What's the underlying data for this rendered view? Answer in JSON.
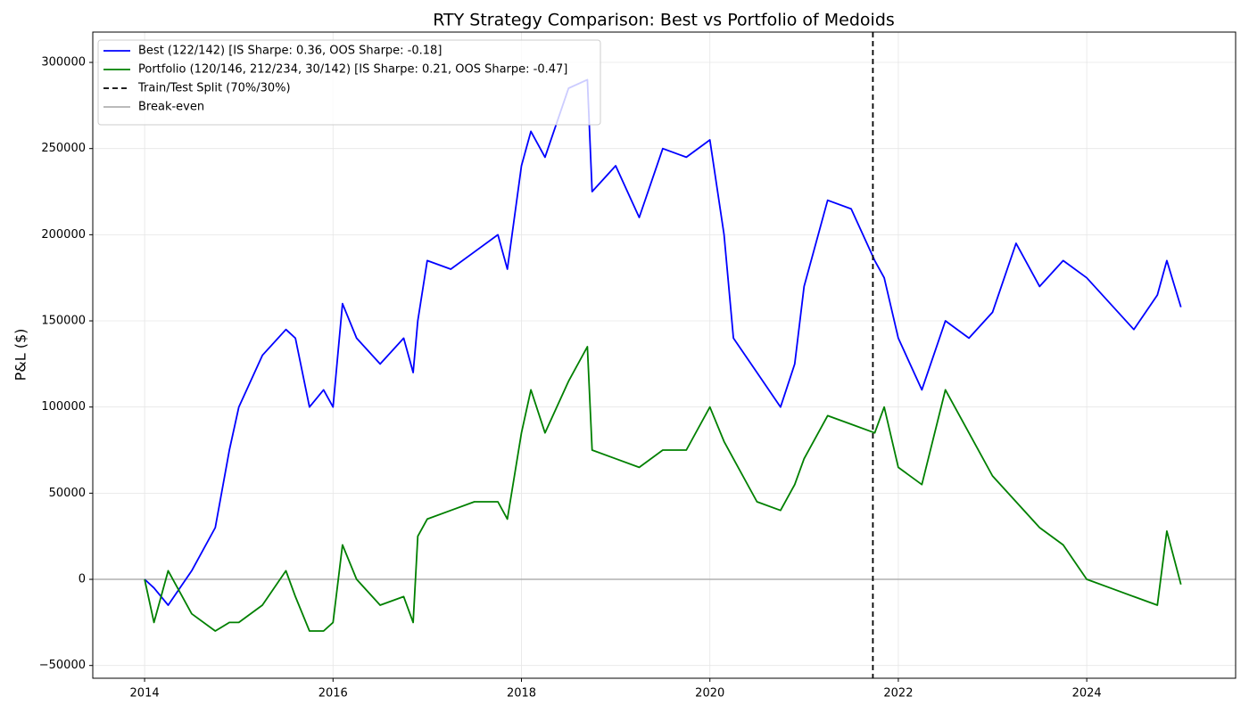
{
  "chart_data": {
    "type": "line",
    "title": "RTY Strategy Comparison: Best vs Portfolio of Medoids",
    "y_label": "P&L ($)",
    "x": [
      2014.0,
      2014.1,
      2014.25,
      2014.5,
      2014.75,
      2014.9,
      2015.0,
      2015.25,
      2015.5,
      2015.6,
      2015.75,
      2015.9,
      2016.0,
      2016.1,
      2016.25,
      2016.5,
      2016.75,
      2016.85,
      2016.9,
      2017.0,
      2017.25,
      2017.5,
      2017.75,
      2017.85,
      2018.0,
      2018.1,
      2018.25,
      2018.5,
      2018.7,
      2018.75,
      2019.0,
      2019.25,
      2019.5,
      2019.75,
      2020.0,
      2020.15,
      2020.25,
      2020.5,
      2020.75,
      2020.9,
      2021.0,
      2021.25,
      2021.5,
      2021.75,
      2021.85,
      2022.0,
      2022.25,
      2022.5,
      2022.75,
      2023.0,
      2023.25,
      2023.5,
      2023.75,
      2024.0,
      2024.25,
      2024.5,
      2024.75,
      2024.85,
      2025.0
    ],
    "series": [
      {
        "name": "Best (122/142) [IS Sharpe: 0.36, OOS Sharpe: -0.18]",
        "color": "#0000ff",
        "values": [
          0,
          -5000,
          -15000,
          5000,
          30000,
          75000,
          100000,
          130000,
          145000,
          140000,
          100000,
          110000,
          100000,
          160000,
          140000,
          125000,
          140000,
          120000,
          150000,
          185000,
          180000,
          190000,
          200000,
          180000,
          240000,
          260000,
          245000,
          285000,
          290000,
          225000,
          240000,
          210000,
          250000,
          245000,
          255000,
          200000,
          140000,
          120000,
          100000,
          125000,
          170000,
          220000,
          215000,
          185000,
          175000,
          140000,
          110000,
          150000,
          140000,
          155000,
          195000,
          170000,
          185000,
          175000,
          160000,
          145000,
          165000,
          185000,
          158000
        ]
      },
      {
        "name": "Portfolio (120/146, 212/234, 30/142) [IS Sharpe: 0.21, OOS Sharpe: -0.47]",
        "color": "#008000",
        "values": [
          0,
          -25000,
          5000,
          -20000,
          -30000,
          -25000,
          -25000,
          -15000,
          5000,
          -10000,
          -30000,
          -30000,
          -25000,
          20000,
          0,
          -15000,
          -10000,
          -25000,
          25000,
          35000,
          40000,
          45000,
          45000,
          35000,
          85000,
          110000,
          85000,
          115000,
          135000,
          75000,
          70000,
          65000,
          75000,
          75000,
          100000,
          80000,
          70000,
          45000,
          40000,
          55000,
          70000,
          95000,
          90000,
          85000,
          100000,
          65000,
          55000,
          110000,
          85000,
          60000,
          45000,
          30000,
          20000,
          0,
          -5000,
          -10000,
          -15000,
          28000,
          -3000
        ]
      }
    ],
    "vlines": [
      {
        "name": "Train/Test Split (70%/30%)",
        "x": 2021.73,
        "color": "#000000",
        "style": "dashed"
      }
    ],
    "hlines": [
      {
        "name": "Break-even",
        "y": 0,
        "color": "#b0b0b0",
        "style": "solid"
      }
    ],
    "xlim": [
      2013.45,
      2025.58
    ],
    "ylim": [
      -57400,
      317600
    ],
    "xticks": [
      2014,
      2016,
      2018,
      2020,
      2022,
      2024
    ],
    "yticks": [
      {
        "value": -50000,
        "label": "−50000"
      },
      0,
      50000,
      100000,
      150000,
      200000,
      250000,
      300000
    ],
    "grid": true,
    "legend_position": "upper-left"
  }
}
